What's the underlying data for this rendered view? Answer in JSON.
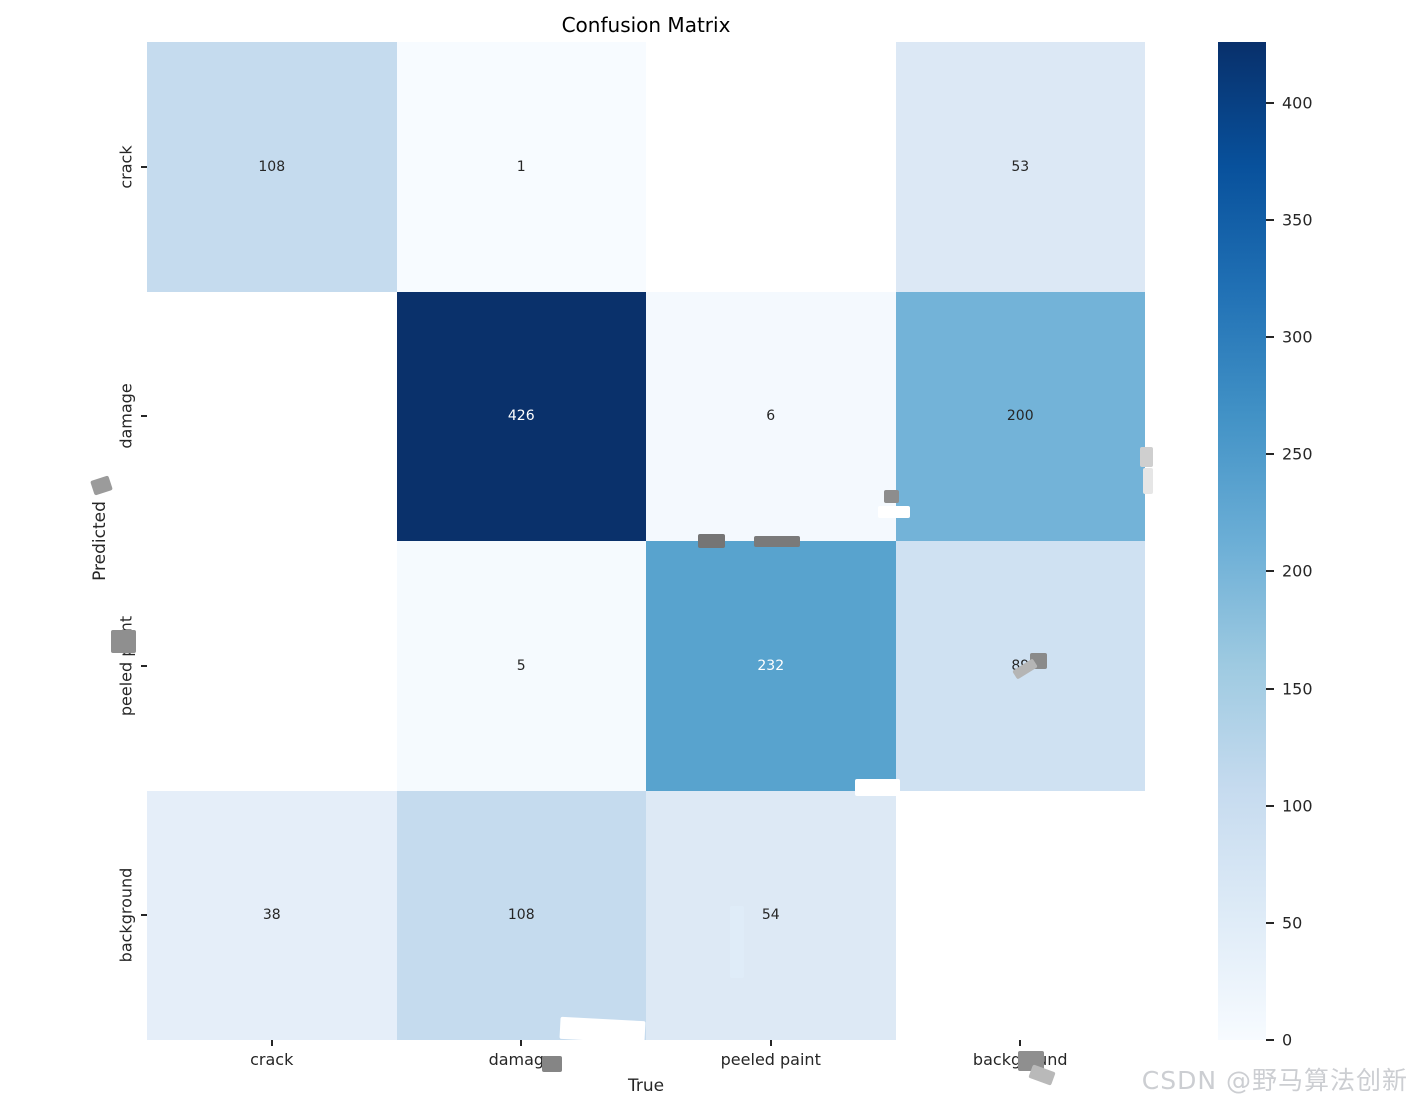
{
  "figure": {
    "title": "Confusion Matrix",
    "watermark": "CSDN @野马算法创新"
  },
  "chart_data": {
    "type": "heatmap",
    "title": "Confusion Matrix",
    "xlabel": "True",
    "ylabel": "Predicted",
    "x_categories": [
      "crack",
      "damage",
      "peeled paint",
      "background"
    ],
    "y_categories": [
      "crack",
      "damage",
      "peeled paint",
      "background"
    ],
    "matrix": [
      [
        108,
        1,
        null,
        53
      ],
      [
        null,
        426,
        6,
        200
      ],
      [
        null,
        5,
        232,
        89
      ],
      [
        38,
        108,
        54,
        null
      ]
    ],
    "cell_labels": [
      [
        "108",
        "1",
        "",
        "53"
      ],
      [
        "",
        "426",
        "6",
        "200"
      ],
      [
        "",
        "5",
        "232",
        "89"
      ],
      [
        "38",
        "108",
        "54",
        ""
      ]
    ],
    "cell_colors": [
      [
        "#c5dbee",
        "#f7fbff",
        "#ffffff",
        "#dce8f5"
      ],
      [
        "#ffffff",
        "#0a316b",
        "#f4f9fe",
        "#73b3d8"
      ],
      [
        "#ffffff",
        "#f5fafe",
        "#58a3ce",
        "#cfe1f2"
      ],
      [
        "#e5eef9",
        "#c5dbee",
        "#dde9f5",
        "#ffffff"
      ]
    ],
    "cell_text_colors": [
      [
        "#262626",
        "#262626",
        "#262626",
        "#262626"
      ],
      [
        "#262626",
        "#ffffff",
        "#262626",
        "#262626"
      ],
      [
        "#262626",
        "#262626",
        "#ffffff",
        "#262626"
      ],
      [
        "#262626",
        "#262626",
        "#262626",
        "#262626"
      ]
    ],
    "colormap": "Blues",
    "vmin": 0,
    "vmax": 426,
    "colorbar_ticks": [
      0,
      50,
      100,
      150,
      200,
      250,
      300,
      350,
      400
    ],
    "colorbar_gradient_low_to_high": [
      "#f7fbff",
      "#deebf7",
      "#c6dbef",
      "#9ecae1",
      "#6baed6",
      "#4292c6",
      "#2171b5",
      "#08519c",
      "#08306b"
    ],
    "legend_position": "right-colorbar",
    "grid": false
  }
}
